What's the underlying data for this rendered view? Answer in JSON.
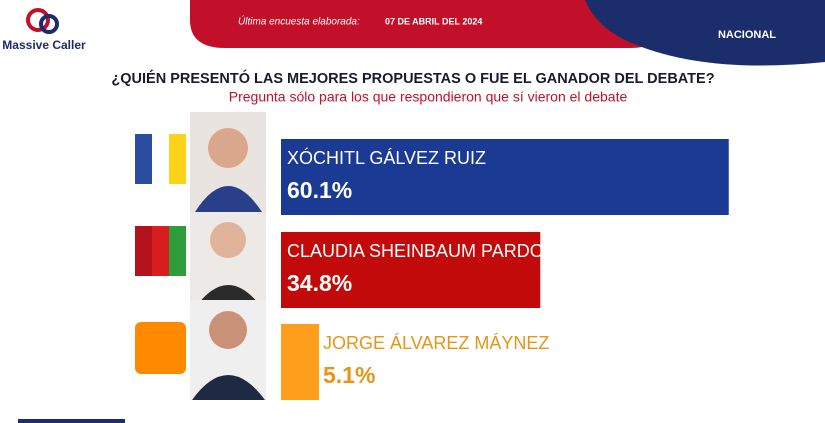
{
  "brand": "Massive Caller",
  "header": {
    "label": "Última encuesta elaborada:",
    "date": "07 DE ABRIL DEL 2024",
    "scope": "NACIONAL"
  },
  "chart_data": {
    "type": "bar",
    "orientation": "horizontal",
    "title": "¿QUIÉN PRESENTÓ LAS MEJORES PROPUESTAS O FUE EL GANADOR DEL DEBATE?",
    "subtitle": "Pregunta sólo para los que respondieron que sí vieron el debate",
    "categories": [
      "XÓCHITL GÁLVEZ RUIZ",
      "CLAUDIA SHEINBAUM PARDO",
      "JORGE ÁLVAREZ MÁYNEZ"
    ],
    "values": [
      60.1,
      34.8,
      5.1
    ],
    "value_labels": [
      "60.1%",
      "34.8%",
      "5.1%"
    ],
    "colors": [
      "#1b3a93",
      "#c20a0a",
      "#ff9d1c"
    ]
  }
}
